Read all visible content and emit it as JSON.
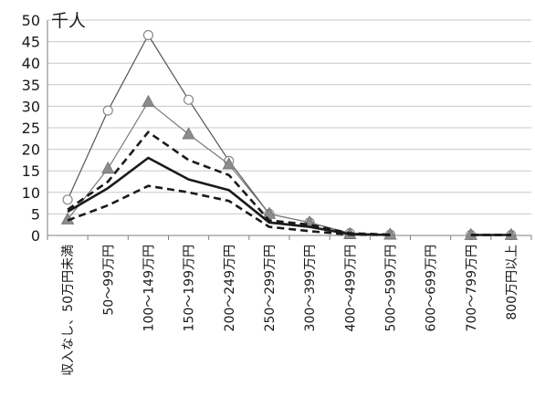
{
  "chart_data": {
    "type": "line",
    "title": "",
    "ylabel": "千人",
    "xlabel": "",
    "ylim": [
      0,
      50
    ],
    "yticks": [
      0,
      5,
      10,
      15,
      20,
      25,
      30,
      35,
      40,
      45,
      50
    ],
    "grid": true,
    "legend": "none",
    "categories": [
      "収入なし、50万円未満",
      "50〜99万円",
      "100〜149万円",
      "150〜199万円",
      "200〜249万円",
      "250〜299万円",
      "300〜399万円",
      "400〜499万円",
      "500〜599万円",
      "600〜699万円",
      "700〜799万円",
      "800万円以上"
    ],
    "series": [
      {
        "values": [
          8.3,
          29,
          46.5,
          31.5,
          17.3,
          5,
          3,
          0.5,
          0.2,
          null,
          0.1,
          0.1
        ],
        "style": "thin-solid",
        "marker": "circle",
        "color": "#555555"
      },
      {
        "values": [
          3.7,
          15.5,
          31,
          23.5,
          16.5,
          5,
          3,
          0.3,
          0.2,
          null,
          0.1,
          0.1
        ],
        "style": "thin-solid",
        "marker": "triangle",
        "color": "#7a7a7a"
      },
      {
        "values": [
          6,
          12.5,
          24,
          17.5,
          14,
          3.5,
          2.5,
          0.5,
          0.2,
          null,
          0.1,
          0.1
        ],
        "style": "bold-dashed",
        "marker": "none",
        "color": "#1a1a1a"
      },
      {
        "values": [
          5.5,
          11,
          18,
          13,
          10.5,
          3,
          2,
          0.3,
          0.1,
          null,
          0.1,
          0.1
        ],
        "style": "bold-solid",
        "marker": "none",
        "color": "#1a1a1a"
      },
      {
        "values": [
          3.5,
          7,
          11.5,
          10,
          8,
          2,
          1,
          0.2,
          0.1,
          null,
          0.1,
          0.1
        ],
        "style": "bold-dashed",
        "marker": "none",
        "color": "#1a1a1a"
      }
    ]
  }
}
